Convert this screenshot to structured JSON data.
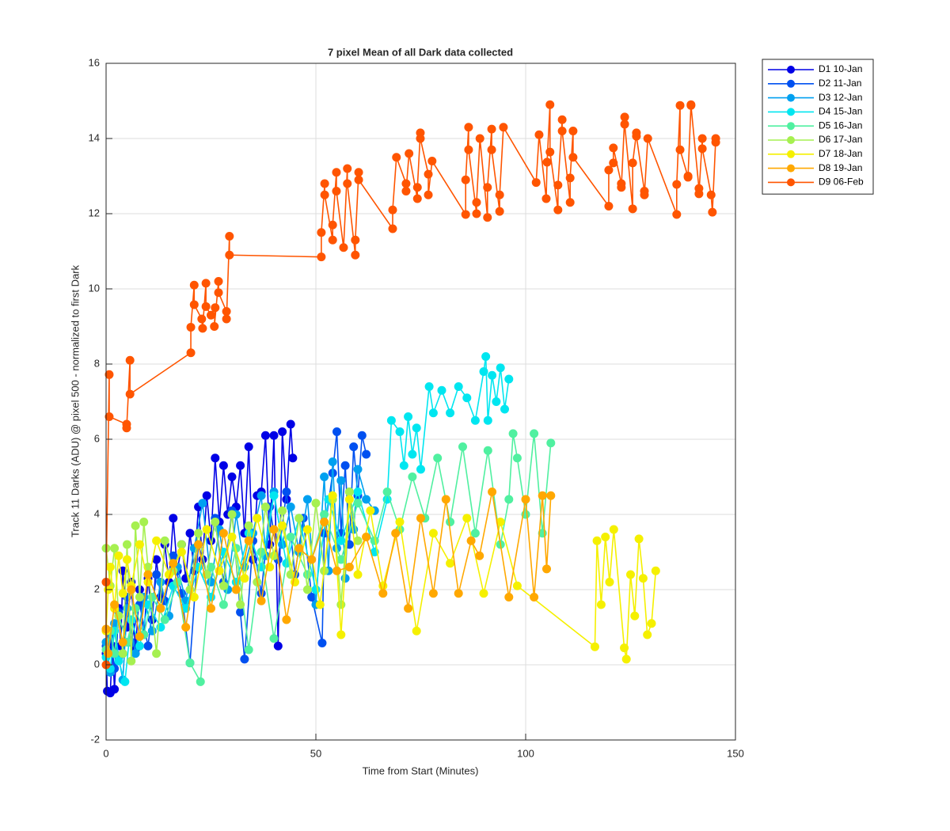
{
  "chart_data": {
    "type": "line",
    "title": "7 pixel Mean of all Dark data collected",
    "x_label": "Time from Start (Minutes)",
    "y_label": "Track 11 Darks (ADU) @ pixel 500 - normalized to first Dark",
    "xlim": [
      0,
      150
    ],
    "xticks": [
      0,
      50,
      100,
      150
    ],
    "ylim": [
      -2,
      16
    ],
    "yticks": [
      -2,
      0,
      2,
      4,
      6,
      8,
      10,
      12,
      14,
      16
    ],
    "grid": true,
    "legend": "outside upper right",
    "series": [
      {
        "name": "D1 10-Jan",
        "color": "#0000e6",
        "x": [
          0,
          0.3,
          1,
          1.5,
          2,
          3,
          3.5,
          4,
          5,
          6,
          7,
          8,
          9,
          10,
          11,
          12,
          13,
          14,
          15,
          16,
          17,
          18,
          19,
          20,
          21,
          22,
          23,
          24,
          25,
          26,
          27,
          28,
          29,
          30,
          31,
          32,
          33,
          34,
          35,
          36,
          37,
          38,
          39,
          40,
          41,
          42,
          43,
          44,
          44.5
        ],
        "values": [
          0.3,
          -0.7,
          -0.75,
          0.5,
          -0.65,
          1.5,
          0.5,
          2.5,
          1,
          2.2,
          0.4,
          2,
          0.8,
          2.3,
          1.2,
          2.8,
          1.8,
          3.2,
          2.2,
          3.9,
          2.5,
          3.2,
          2.3,
          3.5,
          2.5,
          4.2,
          2.8,
          4.5,
          3.3,
          5.5,
          3.8,
          5.3,
          4,
          5,
          4.2,
          5.3,
          3.5,
          5.8,
          2.8,
          4.5,
          4.6,
          6.1,
          3.2,
          6.1,
          0.5,
          6.2,
          4.4,
          6.4,
          5.5
        ]
      },
      {
        "name": "D2 11-Jan",
        "color": "#0050f0",
        "x": [
          0,
          1,
          2,
          3,
          4,
          5,
          6,
          8,
          10,
          12,
          14,
          16,
          18,
          20,
          22,
          24,
          26,
          28,
          30,
          32,
          33,
          35,
          37,
          39,
          41,
          43,
          45,
          47,
          49,
          51.5,
          52,
          54,
          55,
          56,
          57,
          58,
          59,
          60,
          61,
          62
        ],
        "values": [
          0.5,
          0.8,
          -0.1,
          1.4,
          0.3,
          1.8,
          0.6,
          1.6,
          0.5,
          2.4,
          1.7,
          2.9,
          1.9,
          0.05,
          3.2,
          2.4,
          3.9,
          2.2,
          4.1,
          1.4,
          0.15,
          3.3,
          1.9,
          4.2,
          2.8,
          4.6,
          2.4,
          3.9,
          1.8,
          0.58,
          3.5,
          5.1,
          6.2,
          3.5,
          5.3,
          3.2,
          5.8,
          4.5,
          6.1,
          5.6
        ]
      },
      {
        "name": "D3 12-Jan",
        "color": "#00a0f0",
        "x": [
          0,
          1,
          2,
          3,
          4,
          5,
          7,
          9,
          11,
          13,
          15,
          17,
          19,
          21,
          23,
          25,
          27,
          29,
          31,
          33,
          35,
          37,
          38,
          40,
          42,
          44,
          46,
          48,
          50,
          52,
          53,
          54,
          55,
          56,
          57,
          58,
          59,
          60,
          62,
          64
        ],
        "values": [
          0.6,
          -0.2,
          1.1,
          0.2,
          -0.4,
          1.5,
          0.3,
          1.8,
          0.9,
          2.2,
          1.3,
          2.6,
          1.7,
          3.1,
          4.3,
          2.2,
          3.6,
          2.0,
          4.0,
          2.6,
          3.5,
          4.5,
          2.9,
          4.6,
          3.2,
          4.2,
          3.0,
          4.4,
          1.6,
          5.0,
          2.5,
          5.4,
          3.1,
          4.9,
          2.3,
          4.6,
          3.6,
          5.2,
          4.4,
          4.1
        ]
      },
      {
        "name": "D4 15-Jan",
        "color": "#00e6f0",
        "x": [
          0,
          1,
          2,
          3,
          4.5,
          6,
          8,
          10,
          13,
          16,
          19,
          22,
          25,
          28,
          31,
          34,
          37,
          40,
          43,
          46,
          50,
          53,
          56,
          60,
          64,
          67,
          68,
          70,
          71,
          72,
          73,
          74,
          75,
          77,
          78,
          80,
          82,
          84,
          86,
          88,
          90,
          90.5,
          91,
          92,
          93,
          94,
          95,
          96
        ],
        "values": [
          0.2,
          -0.1,
          0.9,
          0.1,
          -0.45,
          1.2,
          0.5,
          1.6,
          1.0,
          2.1,
          1.5,
          2.6,
          1.8,
          3.0,
          2.2,
          3.5,
          2.6,
          4.5,
          2.7,
          3.9,
          2.0,
          4.4,
          3.3,
          4.6,
          3.0,
          4.4,
          6.5,
          6.2,
          5.3,
          6.6,
          5.6,
          6.3,
          5.2,
          7.4,
          6.7,
          7.3,
          6.7,
          7.4,
          7.1,
          6.5,
          7.8,
          8.2,
          6.5,
          7.7,
          7.0,
          7.9,
          6.8,
          7.6
        ]
      },
      {
        "name": "D5 16-Jan",
        "color": "#50f0a0",
        "x": [
          0,
          1,
          2,
          3,
          5,
          7,
          9,
          11,
          14,
          17,
          20,
          22.5,
          25,
          28,
          31,
          34,
          37,
          40,
          44,
          48,
          52,
          56,
          60,
          64,
          67,
          70,
          73,
          76,
          79,
          82,
          85,
          88,
          91,
          94,
          96,
          97,
          98,
          100,
          102,
          104,
          106
        ],
        "values": [
          0.4,
          0.9,
          0.3,
          1.3,
          0.6,
          1.5,
          0.8,
          1.8,
          1.2,
          2.2,
          0.05,
          -0.45,
          2.6,
          1.6,
          3.1,
          0.4,
          3.0,
          0.7,
          3.4,
          2.4,
          4.0,
          2.8,
          4.3,
          3.3,
          4.6,
          3.6,
          5.0,
          3.9,
          5.5,
          3.8,
          5.8,
          3.5,
          5.7,
          3.2,
          4.4,
          6.15,
          5.5,
          4.0,
          6.15,
          3.5,
          5.9
        ]
      },
      {
        "name": "D6 17-Jan",
        "color": "#a6f050",
        "x": [
          0,
          1,
          2,
          3,
          4,
          5,
          6,
          7,
          8,
          9,
          10,
          12,
          14,
          16,
          18,
          20,
          22,
          24,
          26,
          28,
          30,
          32,
          34,
          36,
          38,
          40,
          42,
          44,
          46,
          48,
          50,
          52,
          54,
          56,
          58,
          60
        ],
        "values": [
          3.1,
          2.1,
          3.1,
          1.3,
          0.3,
          3.2,
          0.1,
          3.7,
          1.8,
          3.8,
          2.6,
          0.3,
          3.3,
          2.5,
          3.2,
          2.0,
          3.5,
          2.4,
          3.8,
          2.1,
          4.0,
          1.6,
          3.7,
          2.2,
          4.2,
          2.9,
          4.1,
          2.4,
          3.9,
          2.0,
          4.3,
          2.5,
          4.4,
          1.6,
          4.6,
          3.3
        ]
      },
      {
        "name": "D7 18-Jan",
        "color": "#f5f000",
        "x": [
          0,
          0.5,
          1,
          2,
          3,
          4,
          5,
          6,
          8,
          10,
          12,
          15,
          18,
          21,
          24,
          27,
          30,
          33,
          36,
          39,
          42,
          45,
          48,
          51,
          54,
          56,
          58,
          60,
          63,
          66,
          70,
          74,
          78,
          82,
          86,
          90,
          94,
          98,
          116.5,
          117,
          118,
          119,
          120,
          121,
          123.5,
          124,
          125,
          126,
          127,
          128,
          129,
          130,
          131
        ],
        "values": [
          0.9,
          2.0,
          2.6,
          1.5,
          2.9,
          1.9,
          2.8,
          2.1,
          3.2,
          2.2,
          3.3,
          2.4,
          3.0,
          1.8,
          3.6,
          2.5,
          3.4,
          2.3,
          3.9,
          2.6,
          3.7,
          2.2,
          3.6,
          1.6,
          4.5,
          0.8,
          4.4,
          2.4,
          4.1,
          2.1,
          3.8,
          0.9,
          3.5,
          2.7,
          3.9,
          1.9,
          3.8,
          2.1,
          0.48,
          3.3,
          1.6,
          3.4,
          2.2,
          3.6,
          0.45,
          0.15,
          2.4,
          1.3,
          3.35,
          2.3,
          0.8,
          1.1,
          2.5
        ]
      },
      {
        "name": "D8 19-Jan",
        "color": "#ffa800",
        "x": [
          0,
          0.5,
          2,
          4,
          6,
          8,
          10,
          13,
          16,
          19,
          22,
          25,
          28,
          31,
          34,
          37,
          40,
          43,
          46,
          49,
          52,
          55,
          58,
          62,
          66,
          69,
          72,
          75,
          78,
          81,
          84,
          87,
          89,
          92,
          96,
          100,
          102,
          104,
          105,
          106
        ],
        "values": [
          0.95,
          0.3,
          1.6,
          0.6,
          2.0,
          0.75,
          2.4,
          1.5,
          2.7,
          1.0,
          3.2,
          1.5,
          3.5,
          2.0,
          3.3,
          1.7,
          3.6,
          1.2,
          3.1,
          2.8,
          3.8,
          2.5,
          2.6,
          3.4,
          1.9,
          3.5,
          1.5,
          3.9,
          1.9,
          4.4,
          1.9,
          3.3,
          2.9,
          4.6,
          1.8,
          4.4,
          1.8,
          4.5,
          2.55,
          4.5
        ]
      },
      {
        "name": "D9 06-Feb",
        "color": "#ff5500",
        "x": [
          0,
          0,
          0.75,
          0.75,
          4.9,
          4.9,
          5.7,
          5.7,
          20.2,
          20.2,
          21,
          21,
          22.8,
          23,
          23.8,
          23.8,
          25,
          26,
          25.8,
          26.8,
          26.8,
          28.7,
          28.7,
          29.4,
          29.4,
          51.3,
          51.3,
          52.1,
          52.1,
          54,
          54,
          54.9,
          54.9,
          56.6,
          57.5,
          57.5,
          59.4,
          59.4,
          60.2,
          60.2,
          68.3,
          68.3,
          69.2,
          71.5,
          71.5,
          72.2,
          74.2,
          74.2,
          74.9,
          74.9,
          76.8,
          76.8,
          77.7,
          85.7,
          85.7,
          86.4,
          86.4,
          88.3,
          88.3,
          89.1,
          90.9,
          90.9,
          91.9,
          91.9,
          93.8,
          93.8,
          94.7,
          102.5,
          103.2,
          104.9,
          105.1,
          105.8,
          105.8,
          107.7,
          107.7,
          108.7,
          108.7,
          110.6,
          110.6,
          111.3,
          111.3,
          119.8,
          119.8,
          120.9,
          120.9,
          122.8,
          122.8,
          123.6,
          123.6,
          125.5,
          125.5,
          126.4,
          126.4,
          128.3,
          128.3,
          129.1,
          136,
          136,
          136.8,
          136.8,
          138.7,
          138.7,
          139.4,
          139.4,
          141.3,
          141.3,
          142.1,
          142.1,
          144.2,
          144.5,
          145.3,
          145.3
        ],
        "values": [
          0,
          2.2,
          7.72,
          6.6,
          6.4,
          6.3,
          8.1,
          7.2,
          8.3,
          8.98,
          10.1,
          9.58,
          9.2,
          8.95,
          10.15,
          9.53,
          9.3,
          9.5,
          9.0,
          10.2,
          9.9,
          9.4,
          9.2,
          11.4,
          10.9,
          10.85,
          11.5,
          12.8,
          12.5,
          11.3,
          11.7,
          13.1,
          12.6,
          11.1,
          13.2,
          12.8,
          10.9,
          11.3,
          13.1,
          12.9,
          11.6,
          12.1,
          13.5,
          12.8,
          12.6,
          13.6,
          12.4,
          12.7,
          14.15,
          14.0,
          13.05,
          12.5,
          13.4,
          11.98,
          12.9,
          14.3,
          13.7,
          12.0,
          12.3,
          14.0,
          11.9,
          12.7,
          14.25,
          13.7,
          12.06,
          12.5,
          14.3,
          12.83,
          14.1,
          12.4,
          13.37,
          14.9,
          13.64,
          12.1,
          12.76,
          14.5,
          14.2,
          12.3,
          12.95,
          14.2,
          13.5,
          12.2,
          13.16,
          13.35,
          13.75,
          12.8,
          12.7,
          14.57,
          14.38,
          12.13,
          13.35,
          14.15,
          14.06,
          12.6,
          12.5,
          14.0,
          11.98,
          12.78,
          14.88,
          13.7,
          12.97,
          13.0,
          14.9,
          14.88,
          12.67,
          12.53,
          14.0,
          13.73,
          12.5,
          12.04,
          14.0,
          13.9
        ]
      }
    ]
  }
}
